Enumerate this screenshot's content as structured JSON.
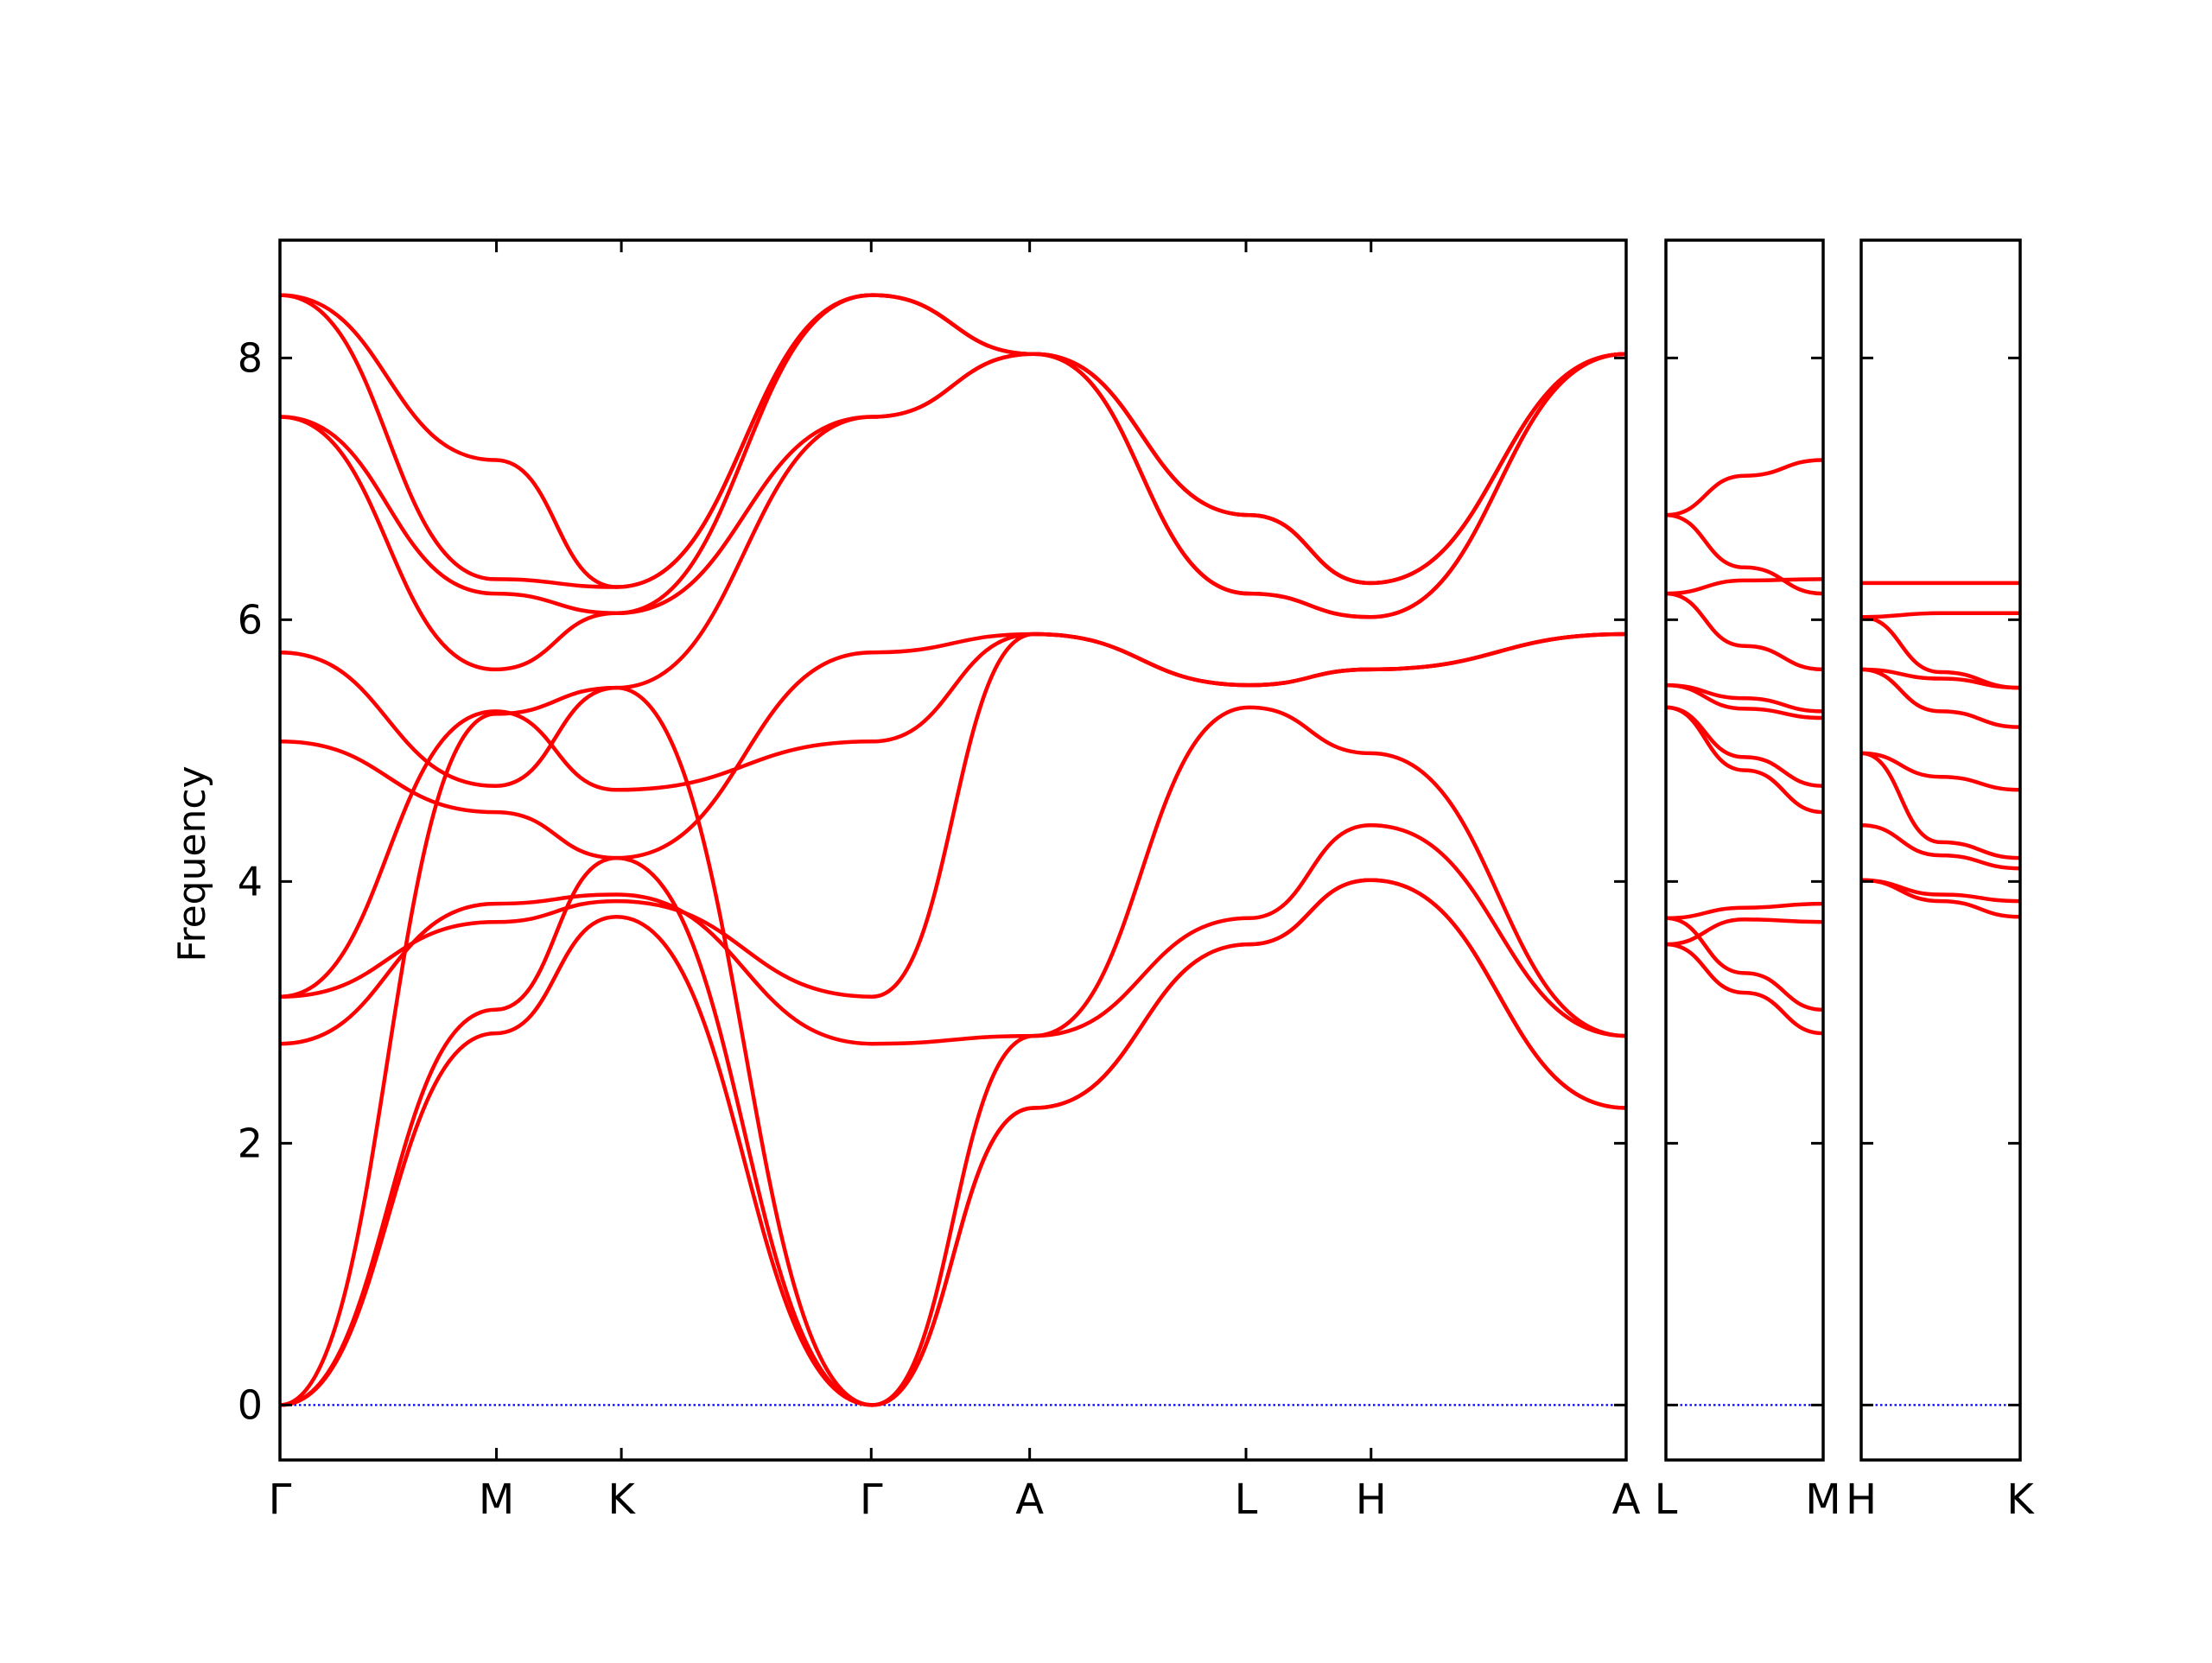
{
  "chart_data": {
    "type": "line",
    "title": "",
    "ylabel": "Frequency",
    "ylim": [
      -0.42,
      8.9
    ],
    "yticks": [
      0,
      2,
      4,
      6,
      8
    ],
    "grid": false,
    "legend": "none",
    "colors": {
      "band": "#ff0000",
      "zero_line": "#0000ff",
      "axis": "#000000"
    },
    "panels": [
      {
        "path": [
          "Γ",
          "M",
          "K",
          "Γ",
          "A",
          "L",
          "H",
          "A"
        ],
        "x": [
          0,
          0.1608,
          0.2536,
          0.4392,
          0.5569,
          0.7176,
          0.8105,
          1.0
        ],
        "bands": [
          {
            "x": [
              0,
              0.16,
              0.25,
              0.44,
              0.56,
              0.72,
              0.81,
              1.0
            ],
            "y": [
              0,
              5.28,
              5.48,
              0,
              2.27,
              3.52,
              4.01,
              2.27
            ]
          },
          {
            "x": [
              0,
              0.16,
              0.25,
              0.44,
              0.56,
              0.72,
              0.81,
              1.0
            ],
            "y": [
              0,
              2.84,
              3.73,
              0,
              2.27,
              3.52,
              4.01,
              2.27
            ]
          },
          {
            "x": [
              0,
              0.16,
              0.25,
              0.44,
              0.56,
              0.72,
              0.81,
              1.0
            ],
            "y": [
              0,
              3.02,
              4.18,
              0,
              2.82,
              3.72,
              4.43,
              2.82
            ]
          },
          {
            "x": [
              0,
              0.16,
              0.25,
              0.44,
              0.56,
              0.72,
              0.81,
              1.0
            ],
            "y": [
              2.76,
              3.83,
              3.9,
              2.76,
              2.82,
              5.33,
              4.98,
              2.82
            ]
          },
          {
            "x": [
              0,
              0.16,
              0.25,
              0.44,
              0.56,
              0.72,
              0.81,
              1.0
            ],
            "y": [
              3.12,
              3.69,
              3.85,
              3.12,
              5.89,
              5.5,
              5.62,
              5.89
            ]
          },
          {
            "x": [
              0,
              0.16,
              0.25,
              0.44,
              0.56,
              0.72,
              0.81,
              1.0
            ],
            "y": [
              3.12,
              5.3,
              4.7,
              5.07,
              5.89,
              5.5,
              5.62,
              5.89
            ]
          },
          {
            "x": [
              0,
              0.16,
              0.25,
              0.44,
              0.56,
              0.72,
              0.81,
              1.0
            ],
            "y": [
              5.07,
              4.53,
              4.18,
              5.75,
              5.89,
              5.5,
              5.62,
              5.89
            ]
          },
          {
            "x": [
              0,
              0.16,
              0.25,
              0.44,
              0.56,
              0.72,
              0.81,
              1.0
            ],
            "y": [
              5.75,
              4.73,
              5.48,
              7.55,
              8.03,
              6.2,
              6.02,
              8.03
            ]
          },
          {
            "x": [
              0,
              0.16,
              0.25,
              0.44,
              0.56,
              0.72,
              0.81,
              1.0
            ],
            "y": [
              7.55,
              5.62,
              6.05,
              7.55,
              8.03,
              6.2,
              6.02,
              8.03
            ]
          },
          {
            "x": [
              0,
              0.16,
              0.25,
              0.44,
              0.56,
              0.72,
              0.81,
              1.0
            ],
            "y": [
              7.55,
              6.2,
              6.05,
              8.48,
              8.03,
              6.8,
              6.28,
              8.03
            ]
          },
          {
            "x": [
              0,
              0.16,
              0.25,
              0.44,
              0.56,
              0.72,
              0.81,
              1.0
            ],
            "y": [
              8.48,
              6.31,
              6.25,
              8.48,
              8.03,
              6.8,
              6.28,
              8.03
            ]
          },
          {
            "x": [
              0,
              0.16,
              0.25,
              0.44,
              0.56,
              0.72,
              0.81,
              1.0
            ],
            "y": [
              8.48,
              7.22,
              6.25,
              8.48,
              8.03,
              6.8,
              6.28,
              8.03
            ]
          }
        ]
      },
      {
        "path": [
          "L",
          "M"
        ],
        "x": [
          0,
          1.0
        ],
        "bands": [
          {
            "x": [
              0,
              0.5,
              1.0
            ],
            "y": [
              3.52,
              3.71,
              3.69
            ]
          },
          {
            "x": [
              0,
              0.5,
              1.0
            ],
            "y": [
              3.52,
              3.15,
              2.84
            ]
          },
          {
            "x": [
              0,
              0.5,
              1.0
            ],
            "y": [
              3.72,
              3.3,
              3.02
            ]
          },
          {
            "x": [
              0,
              0.5,
              1.0
            ],
            "y": [
              3.72,
              3.8,
              3.83
            ]
          },
          {
            "x": [
              0,
              0.5,
              1.0
            ],
            "y": [
              5.33,
              4.85,
              4.53
            ]
          },
          {
            "x": [
              0,
              0.5,
              1.0
            ],
            "y": [
              5.33,
              4.95,
              4.73
            ]
          },
          {
            "x": [
              0,
              0.5,
              1.0
            ],
            "y": [
              5.5,
              5.32,
              5.25
            ]
          },
          {
            "x": [
              0,
              0.5,
              1.0
            ],
            "y": [
              5.5,
              5.4,
              5.3
            ]
          },
          {
            "x": [
              0,
              0.5,
              1.0
            ],
            "y": [
              6.2,
              5.8,
              5.62
            ]
          },
          {
            "x": [
              0,
              0.5,
              1.0
            ],
            "y": [
              6.2,
              6.3,
              6.31
            ]
          },
          {
            "x": [
              0,
              0.5,
              1.0
            ],
            "y": [
              6.8,
              6.4,
              6.2
            ]
          },
          {
            "x": [
              0,
              0.5,
              1.0
            ],
            "y": [
              6.8,
              7.1,
              7.22
            ]
          }
        ]
      },
      {
        "path": [
          "H",
          "K"
        ],
        "x": [
          0,
          1.0
        ],
        "bands": [
          {
            "x": [
              0,
              0.5,
              1.0
            ],
            "y": [
              4.01,
              3.9,
              3.85
            ]
          },
          {
            "x": [
              0,
              0.5,
              1.0
            ],
            "y": [
              4.01,
              3.85,
              3.73
            ]
          },
          {
            "x": [
              0,
              0.5,
              1.0
            ],
            "y": [
              4.43,
              4.2,
              4.1
            ]
          },
          {
            "x": [
              0,
              0.5,
              1.0
            ],
            "y": [
              4.98,
              4.3,
              4.18
            ]
          },
          {
            "x": [
              0,
              0.5,
              1.0
            ],
            "y": [
              4.98,
              4.8,
              4.7
            ]
          },
          {
            "x": [
              0,
              0.5,
              1.0
            ],
            "y": [
              5.62,
              5.55,
              5.48
            ]
          },
          {
            "x": [
              0,
              0.5,
              1.0
            ],
            "y": [
              5.62,
              5.3,
              5.18
            ]
          },
          {
            "x": [
              0,
              0.5,
              1.0
            ],
            "y": [
              6.02,
              5.6,
              5.48
            ]
          },
          {
            "x": [
              0,
              0.5,
              1.0
            ],
            "y": [
              6.02,
              6.05,
              6.05
            ]
          },
          {
            "x": [
              0,
              0.5,
              1.0
            ],
            "y": [
              6.28,
              6.28,
              6.28
            ]
          }
        ]
      }
    ]
  }
}
